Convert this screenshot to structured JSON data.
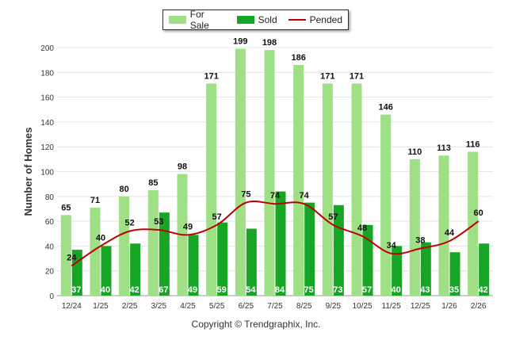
{
  "chart_data": {
    "type": "bar",
    "ylabel": "Number of Homes",
    "xlabel": "",
    "ylim": [
      0,
      200
    ],
    "yticks": [
      0,
      20,
      40,
      60,
      80,
      100,
      120,
      140,
      160,
      180,
      200
    ],
    "categories": [
      "12/24",
      "1/25",
      "2/25",
      "3/25",
      "4/25",
      "5/25",
      "6/25",
      "7/25",
      "8/25",
      "9/25",
      "10/25",
      "11/25",
      "12/25",
      "1/26",
      "2/26"
    ],
    "series": [
      {
        "name": "For Sale",
        "kind": "bar",
        "color": "#9fdf86",
        "values": [
          65,
          71,
          80,
          85,
          98,
          171,
          199,
          198,
          186,
          171,
          171,
          146,
          110,
          113,
          116
        ]
      },
      {
        "name": "Sold",
        "kind": "bar",
        "color": "#17a526",
        "values": [
          37,
          40,
          42,
          67,
          49,
          59,
          54,
          84,
          75,
          73,
          57,
          40,
          43,
          35,
          42
        ]
      },
      {
        "name": "Pended",
        "kind": "line",
        "color": "#c00000",
        "values": [
          24,
          40,
          52,
          53,
          49,
          57,
          75,
          74,
          74,
          57,
          48,
          34,
          38,
          44,
          60
        ]
      }
    ],
    "legend": "top-center",
    "copyright": "Copyright © Trendgraphix, Inc."
  }
}
